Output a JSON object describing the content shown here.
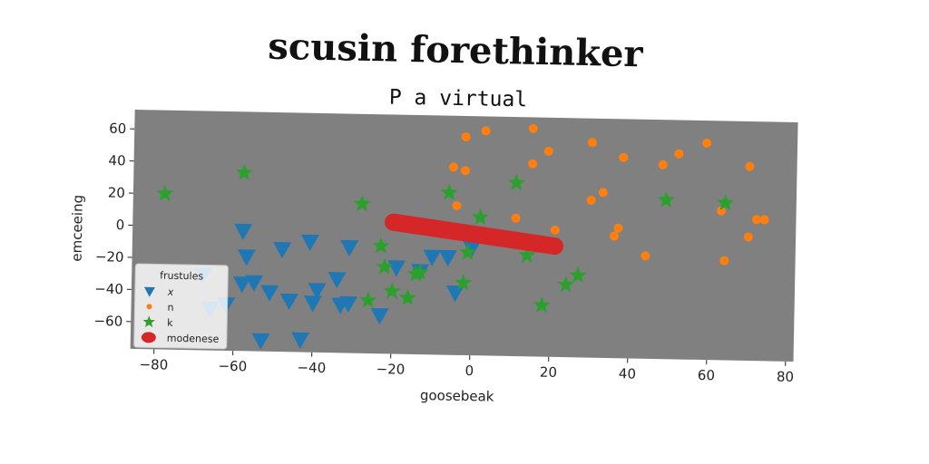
{
  "title": "scusin forethinker",
  "chart_data": {
    "type": "scatter",
    "title": "P a virtual",
    "xlabel": "goosebeak",
    "ylabel": "emceeing",
    "xlim": [
      -86,
      82
    ],
    "ylim": [
      -77,
      72
    ],
    "xticks": [
      -80,
      -60,
      -40,
      -20,
      0,
      20,
      40,
      60,
      80
    ],
    "yticks": [
      60,
      40,
      20,
      0,
      -20,
      -40,
      -60
    ],
    "grid": false,
    "legend": {
      "title": "frustules",
      "position": "lower-left"
    },
    "background": "#808080",
    "series": [
      {
        "name": "x",
        "marker": "triangle-down",
        "color": "#1f77b4",
        "points": [
          [
            -58,
            -2
          ],
          [
            -57,
            -18
          ],
          [
            -55,
            -34
          ],
          [
            -58,
            -35
          ],
          [
            -48,
            -13
          ],
          [
            -41,
            -8
          ],
          [
            -31,
            -11
          ],
          [
            -34,
            -31
          ],
          [
            -39,
            -38
          ],
          [
            -40,
            -46
          ],
          [
            -31,
            -46
          ],
          [
            -33,
            -47
          ],
          [
            -46,
            -45
          ],
          [
            -51,
            -40
          ],
          [
            -53,
            -70
          ],
          [
            -43,
            -69
          ],
          [
            -23,
            -53
          ],
          [
            -19,
            -23
          ],
          [
            -13,
            -25
          ],
          [
            -10,
            -16
          ],
          [
            -6,
            -16
          ],
          [
            -4,
            -38
          ],
          [
            0,
            -10
          ],
          [
            -62,
            -48
          ],
          [
            -66,
            -51
          ],
          [
            -68,
            -30
          ]
        ]
      },
      {
        "name": "n",
        "marker": "circle",
        "color": "#ff7f0e",
        "points": [
          [
            -5,
            40
          ],
          [
            -2,
            38
          ],
          [
            -2,
            59
          ],
          [
            3,
            63
          ],
          [
            -4,
            16
          ],
          [
            11,
            9
          ],
          [
            15,
            43
          ],
          [
            15,
            65
          ],
          [
            19,
            51
          ],
          [
            30,
            57
          ],
          [
            38,
            48
          ],
          [
            30,
            21
          ],
          [
            33,
            26
          ],
          [
            37,
            4
          ],
          [
            36,
            -1
          ],
          [
            44,
            -13
          ],
          [
            48,
            44
          ],
          [
            52,
            51
          ],
          [
            59,
            58
          ],
          [
            63,
            16
          ],
          [
            64,
            -15
          ],
          [
            70,
            44
          ],
          [
            70,
            0
          ],
          [
            72,
            11
          ],
          [
            74,
            11
          ],
          [
            21,
            2
          ]
        ]
      },
      {
        "name": "k",
        "marker": "star",
        "color": "#2ca02c",
        "points": [
          [
            -78,
            20
          ],
          [
            -58,
            34
          ],
          [
            -28,
            16
          ],
          [
            -23,
            -10
          ],
          [
            -22,
            -23
          ],
          [
            -20,
            -38
          ],
          [
            -16,
            -42
          ],
          [
            -14,
            -27
          ],
          [
            -13,
            -26
          ],
          [
            -6,
            24
          ],
          [
            -2,
            -32
          ],
          [
            -1,
            -13
          ],
          [
            2,
            9
          ],
          [
            11,
            31
          ],
          [
            14,
            -14
          ],
          [
            18,
            -45
          ],
          [
            18,
            -8
          ],
          [
            24,
            -32
          ],
          [
            27,
            -26
          ],
          [
            49,
            22
          ],
          [
            64,
            21
          ],
          [
            -26,
            -44
          ]
        ]
      },
      {
        "name": "modenese",
        "marker": "thick-line",
        "color": "#d62728",
        "points": [
          [
            -20,
            5
          ],
          [
            21,
            -8
          ]
        ]
      }
    ]
  }
}
